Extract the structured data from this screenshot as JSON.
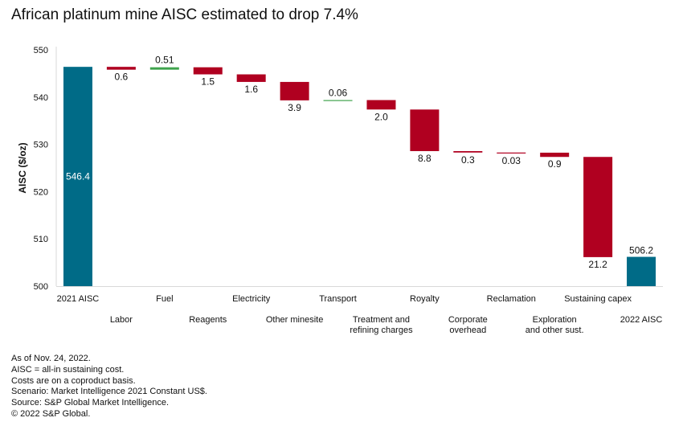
{
  "chart_data": {
    "type": "waterfall",
    "title": "African platinum mine AISC estimated to drop 7.4%",
    "ylabel": "AISC ($/oz)",
    "xlabel": "",
    "ylim": [
      500,
      550
    ],
    "yticks": [
      500,
      510,
      520,
      530,
      540,
      550
    ],
    "grid": false,
    "legend": "none",
    "colors": {
      "total": "#006B87",
      "decrease": "#B00020",
      "increase": "#3FA34D",
      "axis": "#D9D9D9"
    },
    "steps": [
      {
        "category": "2021 AISC",
        "type": "total",
        "value": 546.4,
        "label": "546.4",
        "label_row": 1
      },
      {
        "category": "Labor",
        "type": "decrease",
        "value": -0.6,
        "label": "0.6",
        "label_row": 2
      },
      {
        "category": "Fuel",
        "type": "increase",
        "value": 0.51,
        "label": "0.51",
        "label_row": 1
      },
      {
        "category": "Reagents",
        "type": "decrease",
        "value": -1.5,
        "label": "1.5",
        "label_row": 2
      },
      {
        "category": "Electricity",
        "type": "decrease",
        "value": -1.6,
        "label": "1.6",
        "label_row": 1
      },
      {
        "category": "Other minesite",
        "type": "decrease",
        "value": -3.9,
        "label": "3.9",
        "label_row": 2
      },
      {
        "category": "Transport",
        "type": "increase",
        "value": 0.06,
        "label": "0.06",
        "label_row": 1
      },
      {
        "category": "Treatment and\nrefining charges",
        "type": "decrease",
        "value": -2.0,
        "label": "2.0",
        "label_row": 2
      },
      {
        "category": "Royalty",
        "type": "decrease",
        "value": -8.8,
        "label": "8.8",
        "label_row": 1
      },
      {
        "category": "Corporate\noverhead",
        "type": "decrease",
        "value": -0.3,
        "label": "0.3",
        "label_row": 2
      },
      {
        "category": "Reclamation",
        "type": "decrease",
        "value": -0.03,
        "label": "0.03",
        "label_row": 1
      },
      {
        "category": "Exploration\nand other sust.",
        "type": "decrease",
        "value": -0.9,
        "label": "0.9",
        "label_row": 2
      },
      {
        "category": "Sustaining capex",
        "type": "decrease",
        "value": -21.2,
        "label": "21.2",
        "label_row": 1
      },
      {
        "category": "2022 AISC",
        "type": "total",
        "value": 506.2,
        "label": "506.2",
        "label_row": 2
      }
    ]
  },
  "notes": [
    "As of Nov. 24, 2022.",
    "AISC = all-in sustaining cost.",
    "Costs are on a coproduct basis.",
    "Scenario: Market Intelligence 2021 Constant US$.",
    "Source: S&P Global Market Intelligence.",
    "© 2022 S&P Global."
  ]
}
